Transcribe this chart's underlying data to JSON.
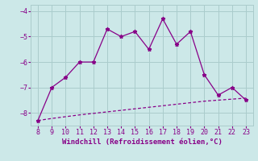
{
  "x": [
    8,
    9,
    10,
    11,
    12,
    13,
    14,
    15,
    16,
    17,
    18,
    19,
    20,
    21,
    22,
    23
  ],
  "y_main": [
    -8.3,
    -7.0,
    -6.6,
    -6.0,
    -6.0,
    -4.7,
    -5.0,
    -4.8,
    -5.5,
    -4.3,
    -5.3,
    -4.8,
    -6.5,
    -7.3,
    -7.0,
    -7.5
  ],
  "y_dashed": [
    -8.3,
    -8.22,
    -8.15,
    -8.08,
    -8.02,
    -7.96,
    -7.9,
    -7.84,
    -7.78,
    -7.72,
    -7.66,
    -7.6,
    -7.54,
    -7.5,
    -7.46,
    -7.42
  ],
  "line_color": "#880088",
  "bg_color": "#cce8e8",
  "grid_color": "#aacccc",
  "xlabel": "Windchill (Refroidissement éolien,°C)",
  "xlim": [
    7.5,
    23.5
  ],
  "ylim": [
    -8.5,
    -3.75
  ],
  "yticks": [
    -8,
    -7,
    -6,
    -5,
    -4
  ],
  "xticks": [
    8,
    9,
    10,
    11,
    12,
    13,
    14,
    15,
    16,
    17,
    18,
    19,
    20,
    21,
    22,
    23
  ]
}
